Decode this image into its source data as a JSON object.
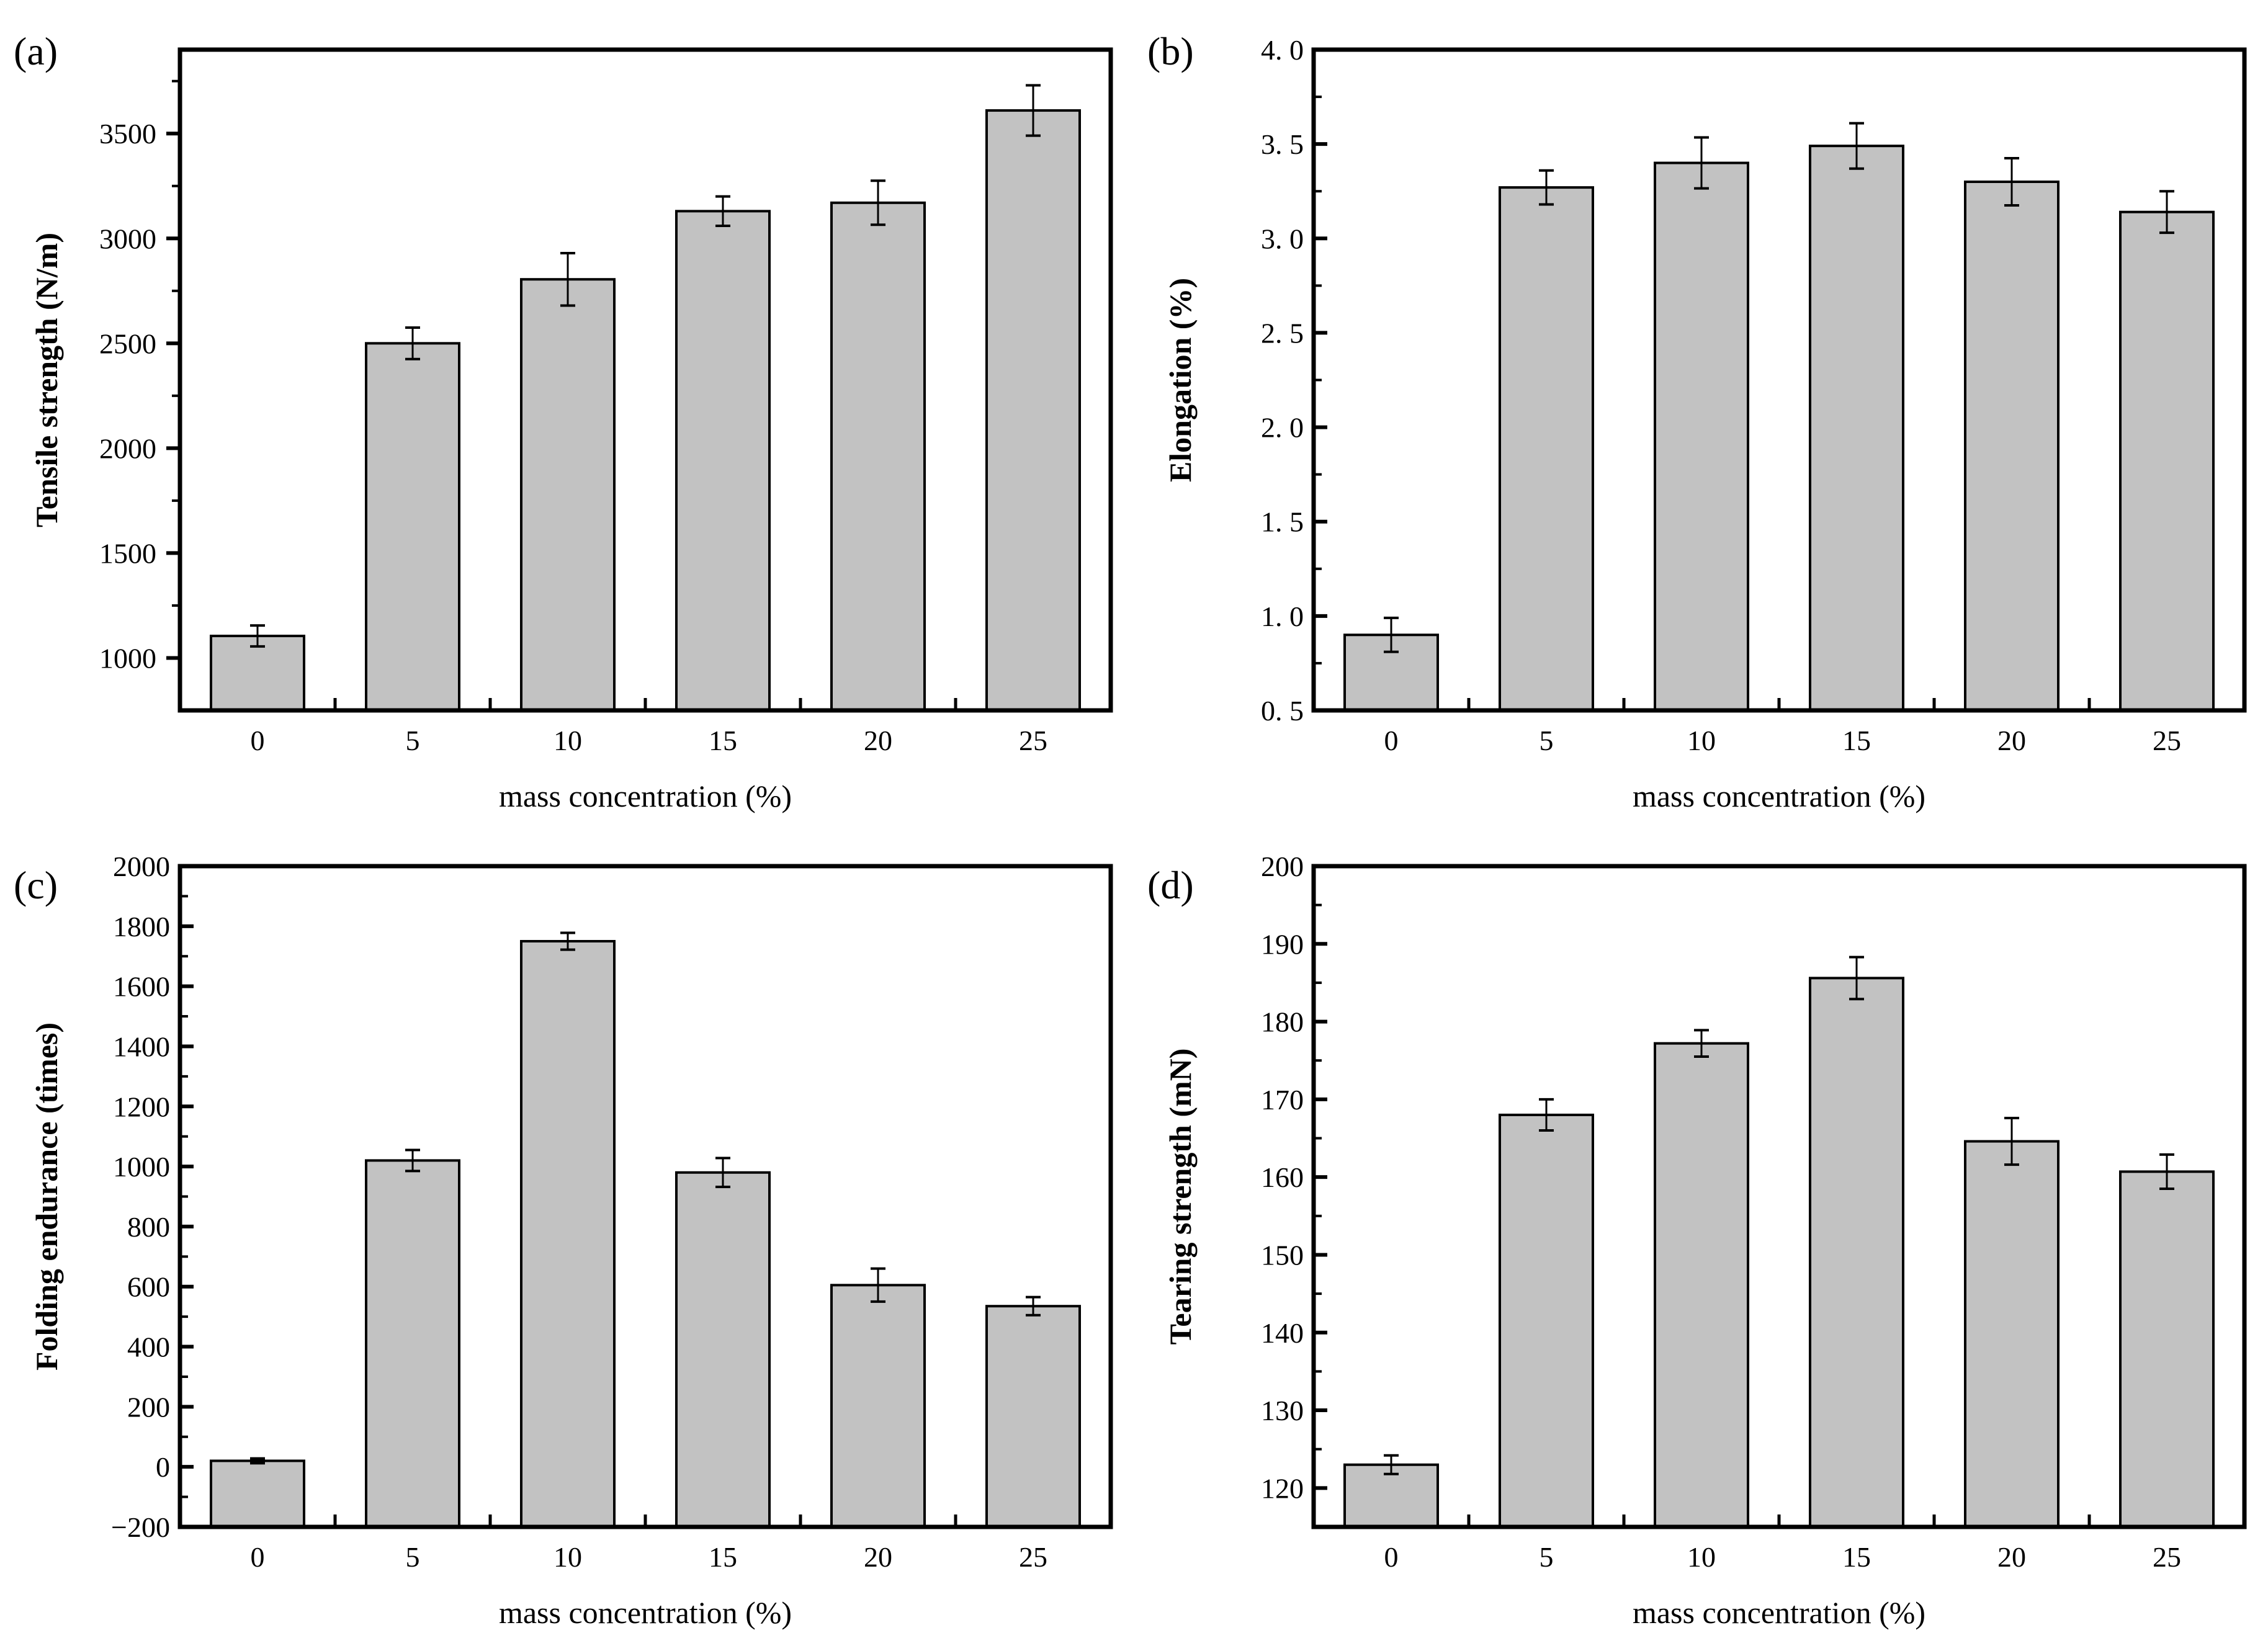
{
  "styles": {
    "background": "#ffffff",
    "bar_fill": "#c2c2c2",
    "bar_stroke": "#000000",
    "axis_color": "#000000"
  },
  "chart_data": [
    {
      "panel_label": "(a)",
      "type": "bar",
      "categories": [
        "0",
        "5",
        "10",
        "15",
        "20",
        "25"
      ],
      "values": [
        1105,
        2500,
        2805,
        3130,
        3170,
        3610
      ],
      "errors": [
        50,
        75,
        125,
        70,
        105,
        120
      ],
      "xlabel": "mass concentration (%)",
      "ylabel": "Tensile strength (N/m)",
      "ylim": [
        750,
        3900
      ],
      "yticks": [
        1000,
        1500,
        2000,
        2500,
        3000,
        3500
      ],
      "ytick_labels": [
        "1000",
        "1500",
        "2000",
        "2500",
        "3000",
        "3500"
      ],
      "minor_tick_step": 250,
      "ytick_side": "outside",
      "grid": false,
      "legend": false
    },
    {
      "panel_label": "(b)",
      "type": "bar",
      "categories": [
        "0",
        "5",
        "10",
        "15",
        "20",
        "25"
      ],
      "values": [
        0.9,
        3.27,
        3.4,
        3.49,
        3.3,
        3.14
      ],
      "errors": [
        0.09,
        0.09,
        0.135,
        0.12,
        0.125,
        0.11
      ],
      "xlabel": "mass concentration (%)",
      "ylabel": "Elongation (%)",
      "ylim": [
        0.5,
        4.0
      ],
      "yticks": [
        0.5,
        1.0,
        1.5,
        2.0,
        2.5,
        3.0,
        3.5,
        4.0
      ],
      "ytick_labels": [
        "0. 5",
        "1. 0",
        "1. 5",
        "2. 0",
        "2. 5",
        "3. 0",
        "3. 5",
        "4. 0"
      ],
      "minor_tick_step": 0.25,
      "ytick_side": "inside",
      "grid": false,
      "legend": false
    },
    {
      "panel_label": "(c)",
      "type": "bar",
      "categories": [
        "0",
        "5",
        "10",
        "15",
        "20",
        "25"
      ],
      "values": [
        20,
        1020,
        1750,
        980,
        605,
        535
      ],
      "errors": [
        8,
        35,
        28,
        48,
        55,
        30
      ],
      "xlabel": "mass concentration (%)",
      "ylabel": "Folding endurance (times)",
      "ylim": [
        -200,
        2000
      ],
      "yticks": [
        -200,
        0,
        200,
        400,
        600,
        800,
        1000,
        1200,
        1400,
        1600,
        1800,
        2000
      ],
      "ytick_labels": [
        "−200",
        "0",
        "200",
        "400",
        "600",
        "800",
        "1000",
        "1200",
        "1400",
        "1600",
        "1800",
        "2000"
      ],
      "minor_tick_step": 100,
      "ytick_side": "inside",
      "grid": false,
      "legend": false
    },
    {
      "panel_label": "(d)",
      "type": "bar",
      "categories": [
        "0",
        "5",
        "10",
        "15",
        "20",
        "25"
      ],
      "values": [
        123,
        168,
        177.2,
        185.6,
        164.6,
        160.7
      ],
      "errors": [
        1.2,
        2,
        1.7,
        2.7,
        3,
        2.2
      ],
      "xlabel": "mass concentration (%)",
      "ylabel": "Tearing strength (mN)",
      "ylim": [
        115,
        200
      ],
      "yticks": [
        120,
        130,
        140,
        150,
        160,
        170,
        180,
        190,
        200
      ],
      "ytick_labels": [
        "120",
        "130",
        "140",
        "150",
        "160",
        "170",
        "180",
        "190",
        "200"
      ],
      "minor_tick_step": 5,
      "ytick_side": "inside",
      "grid": false,
      "legend": false
    }
  ]
}
